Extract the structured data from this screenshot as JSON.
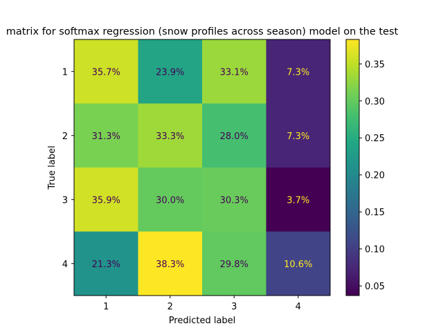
{
  "chart_data": {
    "type": "heatmap",
    "title": "matrix for softmax regression (snow profiles across season) model on the test",
    "xlabel": "Predicted label",
    "ylabel": "True label",
    "x_categories": [
      "1",
      "2",
      "3",
      "4"
    ],
    "y_categories": [
      "1",
      "2",
      "3",
      "4"
    ],
    "values": [
      [
        0.357,
        0.239,
        0.331,
        0.073
      ],
      [
        0.313,
        0.333,
        0.28,
        0.073
      ],
      [
        0.359,
        0.3,
        0.303,
        0.037
      ],
      [
        0.213,
        0.383,
        0.298,
        0.106
      ]
    ],
    "cell_labels": [
      [
        "35.7%",
        "23.9%",
        "33.1%",
        "7.3%"
      ],
      [
        "31.3%",
        "33.3%",
        "28.0%",
        "7.3%"
      ],
      [
        "35.9%",
        "30.0%",
        "30.3%",
        "3.7%"
      ],
      [
        "21.3%",
        "38.3%",
        "29.8%",
        "10.6%"
      ]
    ],
    "colormap": "viridis",
    "colorbar": {
      "range": [
        0.037,
        0.383
      ],
      "ticks": [
        0.05,
        0.1,
        0.15,
        0.2,
        0.25,
        0.3,
        0.35
      ],
      "tick_labels": [
        "0.05",
        "0.10",
        "0.15",
        "0.20",
        "0.25",
        "0.30",
        "0.35"
      ]
    },
    "label_colors": {
      "light": "#fde725",
      "dark": "#440154"
    }
  }
}
